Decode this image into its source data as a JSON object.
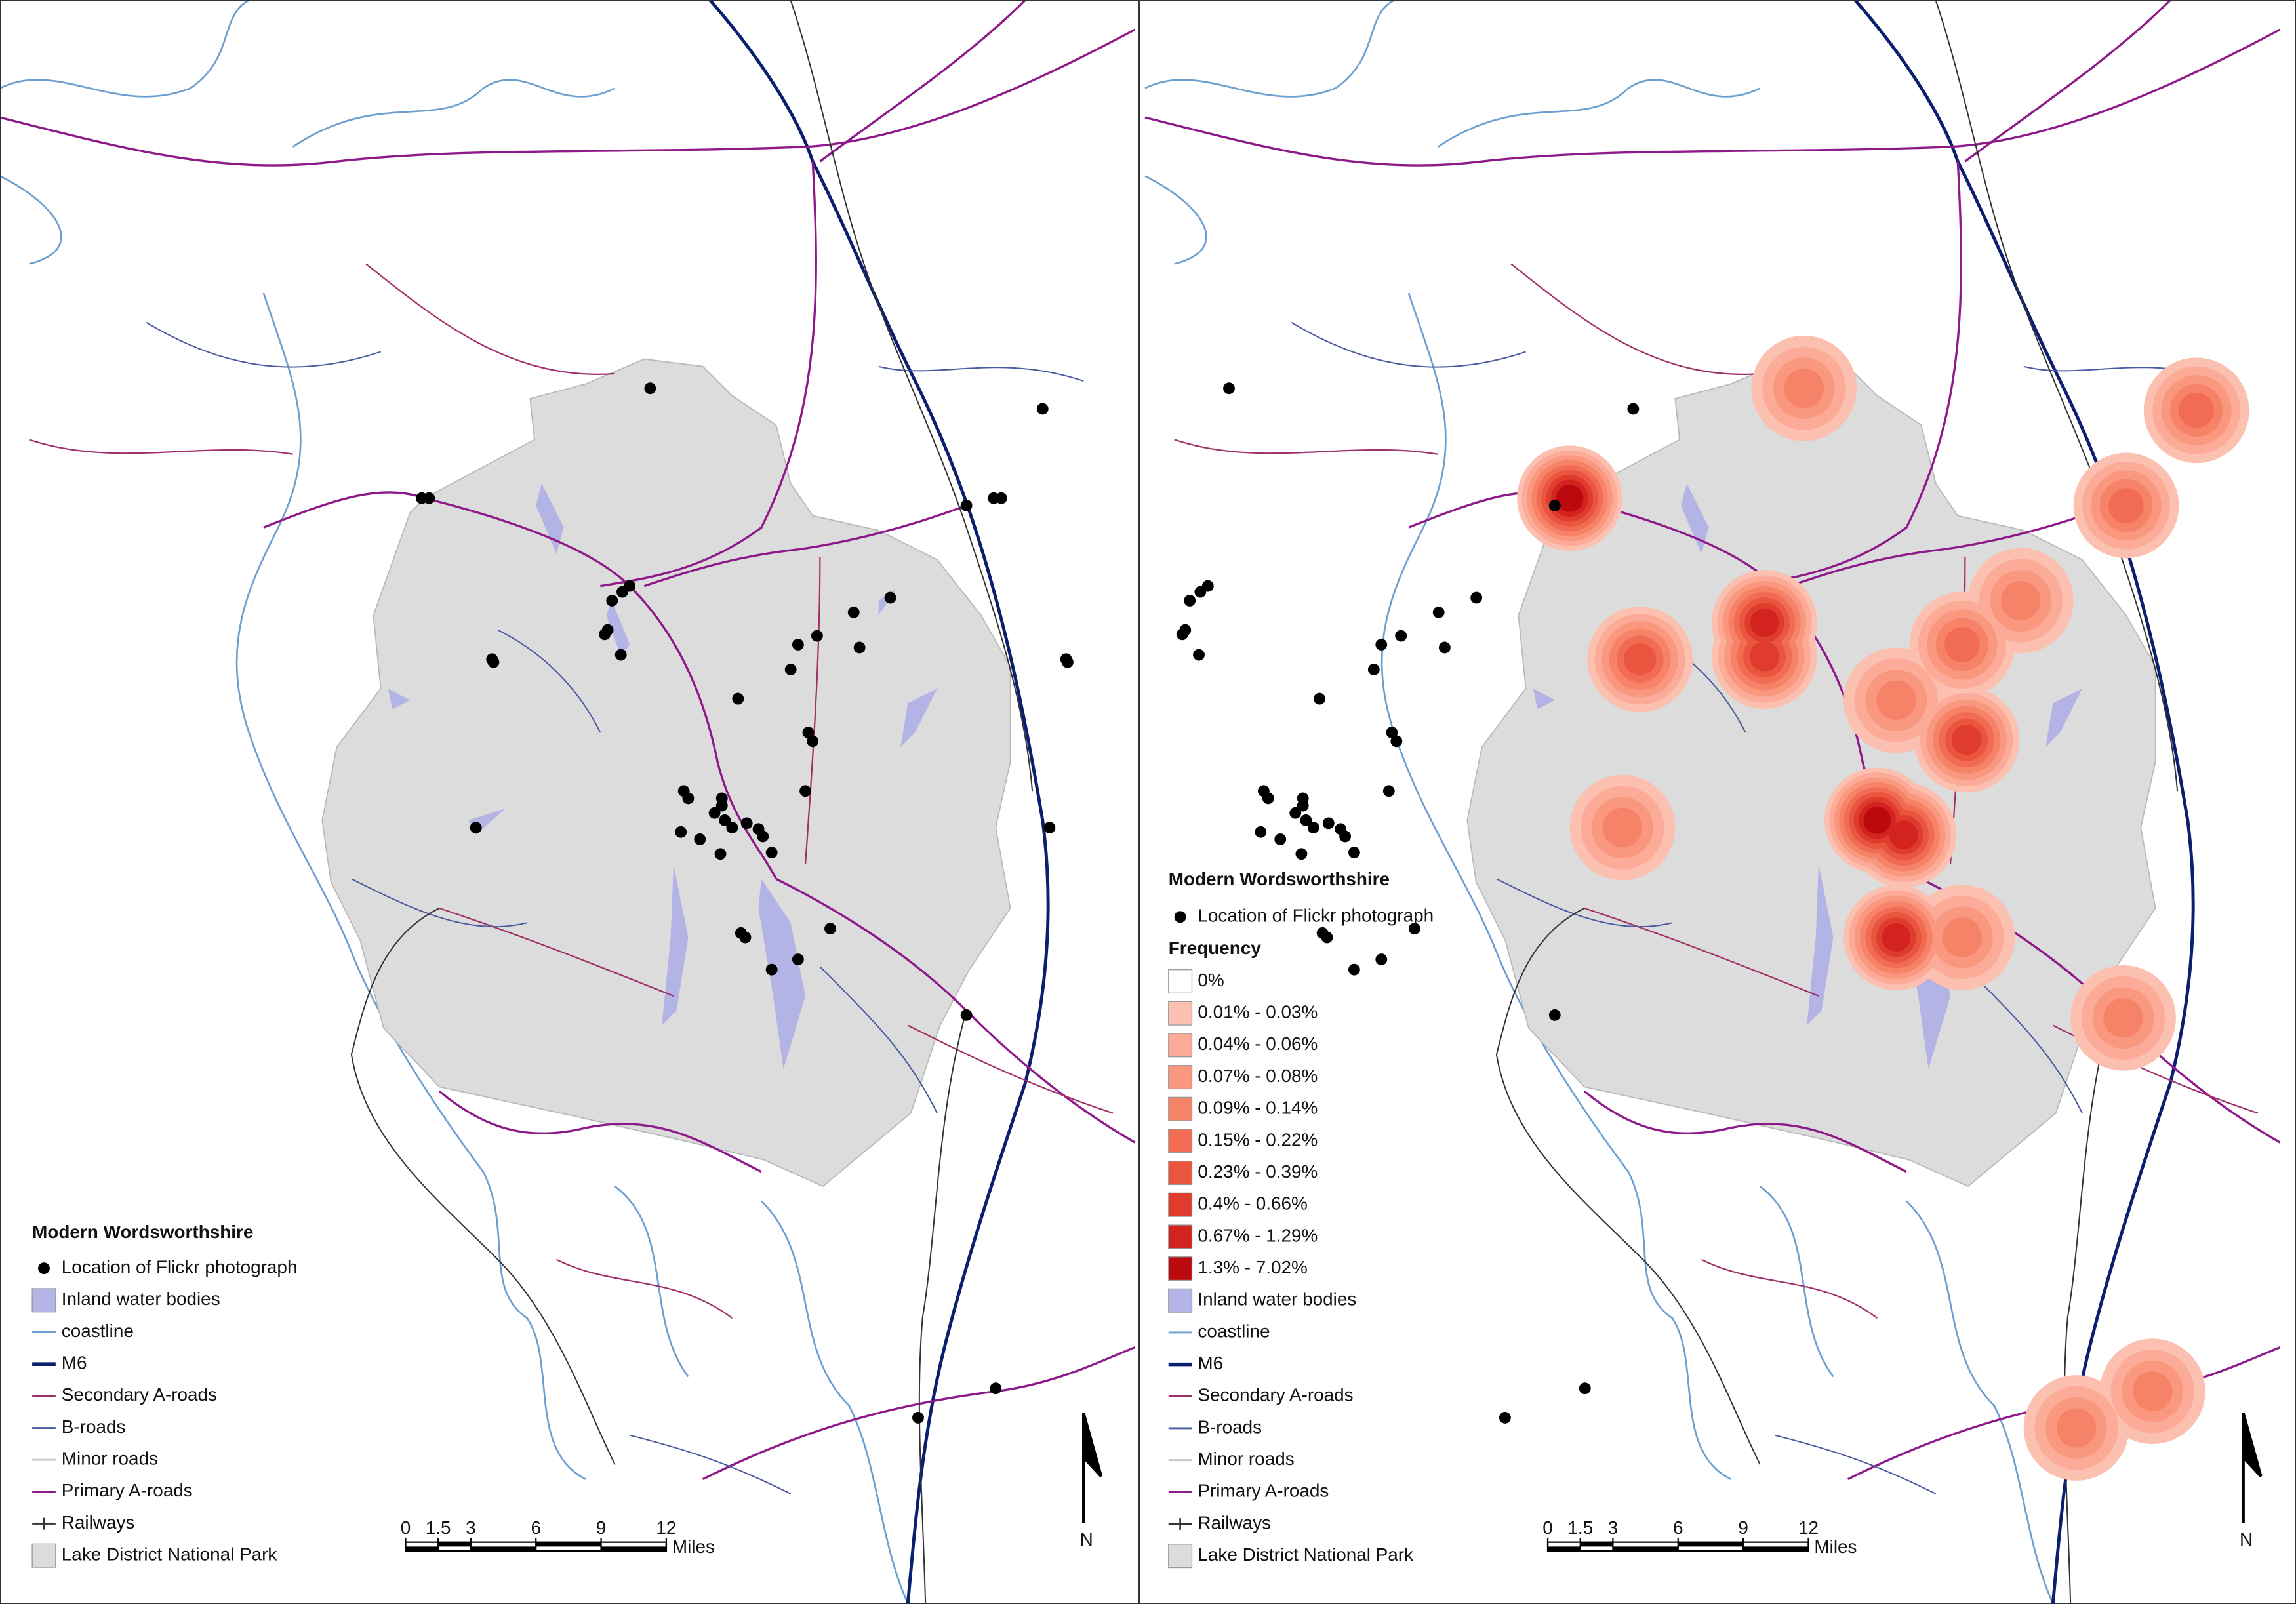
{
  "maps": [
    {
      "legend": {
        "title": "Modern Wordsworthshire",
        "items": [
          {
            "label": "Location of Flickr photograph",
            "symbol": "point",
            "color": "#000000"
          },
          {
            "label": "Inland water bodies",
            "symbol": "patch",
            "color": "#b3b3e6"
          },
          {
            "label": "coastline",
            "symbol": "line",
            "color": "#6a9fd0"
          },
          {
            "label": "M6",
            "symbol": "line",
            "color": "#0a1f6e"
          },
          {
            "label": "Secondary A-roads",
            "symbol": "line",
            "color": "#a0306a"
          },
          {
            "label": "B-roads",
            "symbol": "line",
            "color": "#4a5aa0"
          },
          {
            "label": "Minor roads",
            "symbol": "line",
            "color": "#c8c8c8"
          },
          {
            "label": "Primary A-roads",
            "symbol": "line",
            "color": "#8e1a8a"
          },
          {
            "label": "Railways",
            "symbol": "rail",
            "color": "#333333"
          },
          {
            "label": "Lake District National Park",
            "symbol": "patch",
            "color": "#dcdcdc"
          }
        ]
      },
      "scale_bar": {
        "ticks": [
          0,
          1.5,
          3,
          6,
          9,
          12
        ],
        "unit": "Miles"
      },
      "north_arrow": "N"
    },
    {
      "legend": {
        "title": "Modern Wordsworthshire",
        "items_top": [
          {
            "label": "Location of Flickr photograph",
            "symbol": "point",
            "color": "#000000"
          }
        ],
        "frequency": {
          "title": "Frequency",
          "classes": [
            {
              "label": "0%",
              "color": "#ffffff"
            },
            {
              "label": "0.01% - 0.03%",
              "color": "#fcc0b0"
            },
            {
              "label": "0.04% - 0.06%",
              "color": "#fbab97"
            },
            {
              "label": "0.07% - 0.08%",
              "color": "#f9977f"
            },
            {
              "label": "0.09% - 0.14%",
              "color": "#f68268"
            },
            {
              "label": "0.15% - 0.22%",
              "color": "#f16c53"
            },
            {
              "label": "0.23% - 0.39%",
              "color": "#ea5540"
            },
            {
              "label": "0.4% - 0.66%",
              "color": "#e03c2e"
            },
            {
              "label": "0.67% - 1.29%",
              "color": "#d2231e"
            },
            {
              "label": "1.3% - 7.02%",
              "color": "#bb0a0e"
            }
          ]
        },
        "items": [
          {
            "label": "Inland water bodies",
            "symbol": "patch",
            "color": "#b3b3e6"
          },
          {
            "label": "coastline",
            "symbol": "line",
            "color": "#6a9fd0"
          },
          {
            "label": "M6",
            "symbol": "line",
            "color": "#0a1f6e"
          },
          {
            "label": "Secondary A-roads",
            "symbol": "line",
            "color": "#a0306a"
          },
          {
            "label": "B-roads",
            "symbol": "line",
            "color": "#4a5aa0"
          },
          {
            "label": "Minor roads",
            "symbol": "line",
            "color": "#c8c8c8"
          },
          {
            "label": "Primary A-roads",
            "symbol": "line",
            "color": "#8e1a8a"
          },
          {
            "label": "Railways",
            "symbol": "rail",
            "color": "#333333"
          },
          {
            "label": "Lake District National Park",
            "symbol": "patch",
            "color": "#dcdcdc"
          }
        ]
      },
      "scale_bar": {
        "ticks": [
          0,
          1.5,
          3,
          6,
          9,
          12
        ],
        "unit": "Miles"
      },
      "north_arrow": "N"
    }
  ]
}
